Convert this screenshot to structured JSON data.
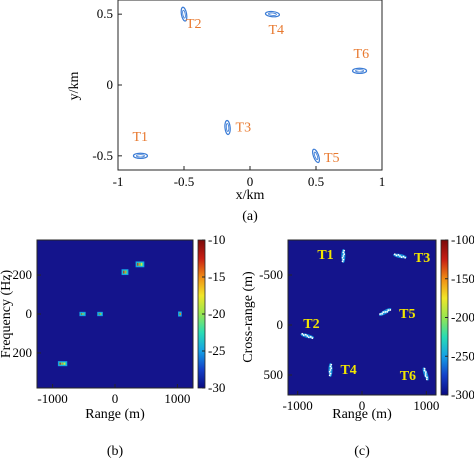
{
  "colors": {
    "target_marker": "#3a7bd5",
    "target_label_a": "#e8792f",
    "target_label_c": "#f2e600",
    "image_background": "#14148c",
    "colormap": [
      "#0a0a80",
      "#1440c8",
      "#14a0e6",
      "#28dcb4",
      "#96e650",
      "#f0e628",
      "#f08c14",
      "#c81e14",
      "#7a0a0a"
    ]
  },
  "chart_data": [
    {
      "id": "a",
      "type": "scatter",
      "caption": "(a)",
      "xlabel": "x/km",
      "ylabel": "y/km",
      "xlim": [
        -1,
        1
      ],
      "ylim": [
        -0.6,
        0.6
      ],
      "xticks": [
        "-1",
        "-0.5",
        "0",
        "0.5",
        "1"
      ],
      "yticks": [
        "-0.5",
        "0",
        "0.5"
      ],
      "grid": false,
      "points": [
        {
          "label": "T1",
          "x": -0.83,
          "y": -0.5,
          "angle": 0
        },
        {
          "label": "T2",
          "x": -0.5,
          "y": 0.5,
          "angle": 80
        },
        {
          "label": "T3",
          "x": -0.17,
          "y": -0.3,
          "angle": 85
        },
        {
          "label": "T4",
          "x": 0.17,
          "y": 0.5,
          "angle": 5
        },
        {
          "label": "T5",
          "x": 0.5,
          "y": -0.5,
          "angle": 70
        },
        {
          "label": "T6",
          "x": 0.83,
          "y": 0.1,
          "angle": 0
        }
      ]
    },
    {
      "id": "b",
      "type": "heatmap",
      "caption": "(b)",
      "xlabel": "Range (m)",
      "ylabel": "Frequency (Hz)",
      "xlim": [
        -1250,
        1250
      ],
      "ylim": [
        -380,
        380
      ],
      "y_reversed": true,
      "xticks": [
        "-1000",
        "0",
        "1000"
      ],
      "yticks": [
        "-200",
        "0",
        "200"
      ],
      "colorbar": {
        "min": -30,
        "max": -10,
        "ticks": [
          "-10",
          "-15",
          "-20",
          "-25",
          "-30"
        ]
      },
      "blobs": [
        {
          "range": 400,
          "freq": -255,
          "w": 140,
          "h": 30
        },
        {
          "range": 160,
          "freq": -215,
          "w": 110,
          "h": 30
        },
        {
          "range": -520,
          "freq": 0,
          "w": 100,
          "h": 22
        },
        {
          "range": -240,
          "freq": 0,
          "w": 90,
          "h": 22
        },
        {
          "range": 1040,
          "freq": 0,
          "w": 60,
          "h": 26
        },
        {
          "range": -840,
          "freq": 255,
          "w": 150,
          "h": 26
        }
      ]
    },
    {
      "id": "c",
      "type": "heatmap",
      "caption": "(c)",
      "xlabel": "Range (m)",
      "ylabel": "Cross-range (m)",
      "xlim": [
        -1150,
        1150
      ],
      "ylim": [
        -850,
        700
      ],
      "y_reversed": true,
      "xticks": [
        "-1000",
        "0",
        "1000"
      ],
      "yticks": [
        "-500",
        "0",
        "500"
      ],
      "colorbar": {
        "min": -300,
        "max": -100,
        "ticks": [
          "-100",
          "-150",
          "-200",
          "-250",
          "-300"
        ]
      },
      "scatterers": [
        {
          "label": "T1",
          "range": -290,
          "cross": -690,
          "angle": 90
        },
        {
          "label": "T3",
          "range": 590,
          "cross": -690,
          "angle": 10
        },
        {
          "label": "T5",
          "range": 360,
          "cross": -130,
          "angle": -30
        },
        {
          "label": "T2",
          "range": -850,
          "cross": 110,
          "angle": 15
        },
        {
          "label": "T4",
          "range": -490,
          "cross": 450,
          "angle": 90
        },
        {
          "label": "T6",
          "range": 990,
          "cross": 490,
          "angle": 70
        }
      ]
    }
  ]
}
